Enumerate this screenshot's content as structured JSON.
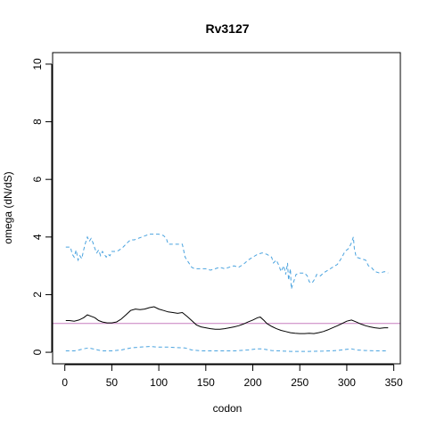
{
  "chart_data": {
    "type": "line",
    "title": "Rv3127",
    "xlabel": "codon",
    "ylabel": "omega (dN/dS)",
    "xlim": [
      -13,
      357
    ],
    "ylim": [
      -0.4,
      10.4
    ],
    "xticks": [
      0,
      50,
      100,
      150,
      200,
      250,
      300,
      350
    ],
    "yticks": [
      0,
      2,
      4,
      6,
      8,
      10
    ],
    "reference_line": {
      "y": 1,
      "color": "#c77dbf"
    },
    "series": [
      {
        "role": "upper",
        "style": "dashed",
        "color": "#4aa3df",
        "points": [
          [
            1,
            3.65
          ],
          [
            6,
            3.65
          ],
          [
            8,
            3.4
          ],
          [
            10,
            3.3
          ],
          [
            12,
            3.55
          ],
          [
            14,
            3.2
          ],
          [
            16,
            3.35
          ],
          [
            18,
            3.25
          ],
          [
            20,
            3.55
          ],
          [
            22,
            3.8
          ],
          [
            24,
            4.0
          ],
          [
            26,
            3.85
          ],
          [
            28,
            3.95
          ],
          [
            30,
            3.8
          ],
          [
            32,
            3.6
          ],
          [
            34,
            3.45
          ],
          [
            36,
            3.55
          ],
          [
            38,
            3.35
          ],
          [
            40,
            3.5
          ],
          [
            42,
            3.4
          ],
          [
            44,
            3.3
          ],
          [
            46,
            3.4
          ],
          [
            48,
            3.35
          ],
          [
            50,
            3.5
          ],
          [
            55,
            3.5
          ],
          [
            58,
            3.55
          ],
          [
            62,
            3.65
          ],
          [
            65,
            3.75
          ],
          [
            68,
            3.85
          ],
          [
            70,
            3.9
          ],
          [
            74,
            3.9
          ],
          [
            78,
            3.95
          ],
          [
            82,
            4.0
          ],
          [
            86,
            4.05
          ],
          [
            90,
            4.1
          ],
          [
            95,
            4.1
          ],
          [
            100,
            4.1
          ],
          [
            105,
            4.05
          ],
          [
            108,
            3.95
          ],
          [
            110,
            3.75
          ],
          [
            115,
            3.75
          ],
          [
            120,
            3.75
          ],
          [
            125,
            3.75
          ],
          [
            128,
            3.3
          ],
          [
            132,
            3.1
          ],
          [
            135,
            2.95
          ],
          [
            138,
            2.9
          ],
          [
            145,
            2.9
          ],
          [
            150,
            2.9
          ],
          [
            155,
            2.85
          ],
          [
            160,
            2.9
          ],
          [
            165,
            2.95
          ],
          [
            170,
            2.9
          ],
          [
            175,
            2.95
          ],
          [
            180,
            3.0
          ],
          [
            185,
            2.95
          ],
          [
            190,
            3.05
          ],
          [
            195,
            3.2
          ],
          [
            200,
            3.3
          ],
          [
            205,
            3.4
          ],
          [
            210,
            3.45
          ],
          [
            215,
            3.4
          ],
          [
            220,
            3.3
          ],
          [
            222,
            3.1
          ],
          [
            225,
            3.2
          ],
          [
            228,
            3.0
          ],
          [
            230,
            2.8
          ],
          [
            233,
            3.0
          ],
          [
            235,
            2.7
          ],
          [
            237,
            3.1
          ],
          [
            238,
            2.5
          ],
          [
            240,
            2.9
          ],
          [
            241,
            2.2
          ],
          [
            243,
            2.4
          ],
          [
            244,
            2.5
          ],
          [
            246,
            2.7
          ],
          [
            250,
            2.75
          ],
          [
            255,
            2.75
          ],
          [
            258,
            2.65
          ],
          [
            260,
            2.45
          ],
          [
            263,
            2.4
          ],
          [
            266,
            2.55
          ],
          [
            268,
            2.7
          ],
          [
            272,
            2.65
          ],
          [
            275,
            2.75
          ],
          [
            280,
            2.85
          ],
          [
            285,
            2.95
          ],
          [
            290,
            3.05
          ],
          [
            295,
            3.3
          ],
          [
            298,
            3.5
          ],
          [
            300,
            3.55
          ],
          [
            302,
            3.6
          ],
          [
            305,
            3.8
          ],
          [
            307,
            4.0
          ],
          [
            308,
            3.6
          ],
          [
            310,
            3.3
          ],
          [
            315,
            3.25
          ],
          [
            320,
            3.2
          ],
          [
            323,
            3.0
          ],
          [
            326,
            2.95
          ],
          [
            330,
            2.8
          ],
          [
            335,
            2.75
          ],
          [
            340,
            2.8
          ],
          [
            344,
            2.75
          ]
        ]
      },
      {
        "role": "estimate",
        "style": "solid",
        "color": "#000000",
        "points": [
          [
            1,
            1.1
          ],
          [
            5,
            1.1
          ],
          [
            10,
            1.08
          ],
          [
            15,
            1.12
          ],
          [
            20,
            1.2
          ],
          [
            24,
            1.3
          ],
          [
            28,
            1.25
          ],
          [
            32,
            1.2
          ],
          [
            36,
            1.1
          ],
          [
            40,
            1.05
          ],
          [
            45,
            1.02
          ],
          [
            50,
            1.02
          ],
          [
            55,
            1.05
          ],
          [
            60,
            1.15
          ],
          [
            65,
            1.3
          ],
          [
            70,
            1.45
          ],
          [
            75,
            1.5
          ],
          [
            80,
            1.48
          ],
          [
            85,
            1.5
          ],
          [
            90,
            1.55
          ],
          [
            95,
            1.58
          ],
          [
            100,
            1.5
          ],
          [
            105,
            1.45
          ],
          [
            110,
            1.4
          ],
          [
            115,
            1.38
          ],
          [
            120,
            1.35
          ],
          [
            125,
            1.38
          ],
          [
            130,
            1.25
          ],
          [
            135,
            1.1
          ],
          [
            140,
            0.95
          ],
          [
            145,
            0.88
          ],
          [
            150,
            0.85
          ],
          [
            155,
            0.82
          ],
          [
            160,
            0.8
          ],
          [
            165,
            0.8
          ],
          [
            170,
            0.82
          ],
          [
            175,
            0.85
          ],
          [
            180,
            0.88
          ],
          [
            185,
            0.92
          ],
          [
            190,
            0.98
          ],
          [
            195,
            1.05
          ],
          [
            200,
            1.12
          ],
          [
            205,
            1.2
          ],
          [
            208,
            1.22
          ],
          [
            212,
            1.1
          ],
          [
            215,
            1.0
          ],
          [
            220,
            0.9
          ],
          [
            225,
            0.82
          ],
          [
            230,
            0.76
          ],
          [
            235,
            0.72
          ],
          [
            240,
            0.68
          ],
          [
            245,
            0.66
          ],
          [
            250,
            0.65
          ],
          [
            255,
            0.65
          ],
          [
            260,
            0.66
          ],
          [
            265,
            0.65
          ],
          [
            270,
            0.68
          ],
          [
            275,
            0.72
          ],
          [
            280,
            0.78
          ],
          [
            285,
            0.85
          ],
          [
            290,
            0.92
          ],
          [
            295,
            1.0
          ],
          [
            300,
            1.08
          ],
          [
            305,
            1.12
          ],
          [
            310,
            1.05
          ],
          [
            315,
            0.98
          ],
          [
            320,
            0.92
          ],
          [
            325,
            0.88
          ],
          [
            330,
            0.85
          ],
          [
            335,
            0.83
          ],
          [
            340,
            0.85
          ],
          [
            344,
            0.85
          ]
        ]
      },
      {
        "role": "lower",
        "style": "dashed",
        "color": "#4aa3df",
        "points": [
          [
            1,
            0.05
          ],
          [
            10,
            0.05
          ],
          [
            15,
            0.08
          ],
          [
            20,
            0.12
          ],
          [
            25,
            0.15
          ],
          [
            30,
            0.12
          ],
          [
            35,
            0.08
          ],
          [
            40,
            0.05
          ],
          [
            50,
            0.05
          ],
          [
            60,
            0.08
          ],
          [
            70,
            0.15
          ],
          [
            80,
            0.18
          ],
          [
            90,
            0.2
          ],
          [
            100,
            0.18
          ],
          [
            110,
            0.18
          ],
          [
            120,
            0.16
          ],
          [
            128,
            0.15
          ],
          [
            135,
            0.08
          ],
          [
            145,
            0.05
          ],
          [
            160,
            0.05
          ],
          [
            180,
            0.05
          ],
          [
            195,
            0.08
          ],
          [
            205,
            0.12
          ],
          [
            210,
            0.12
          ],
          [
            220,
            0.06
          ],
          [
            240,
            0.03
          ],
          [
            260,
            0.03
          ],
          [
            275,
            0.04
          ],
          [
            290,
            0.06
          ],
          [
            300,
            0.1
          ],
          [
            305,
            0.12
          ],
          [
            310,
            0.08
          ],
          [
            320,
            0.06
          ],
          [
            330,
            0.05
          ],
          [
            344,
            0.05
          ]
        ]
      }
    ]
  }
}
